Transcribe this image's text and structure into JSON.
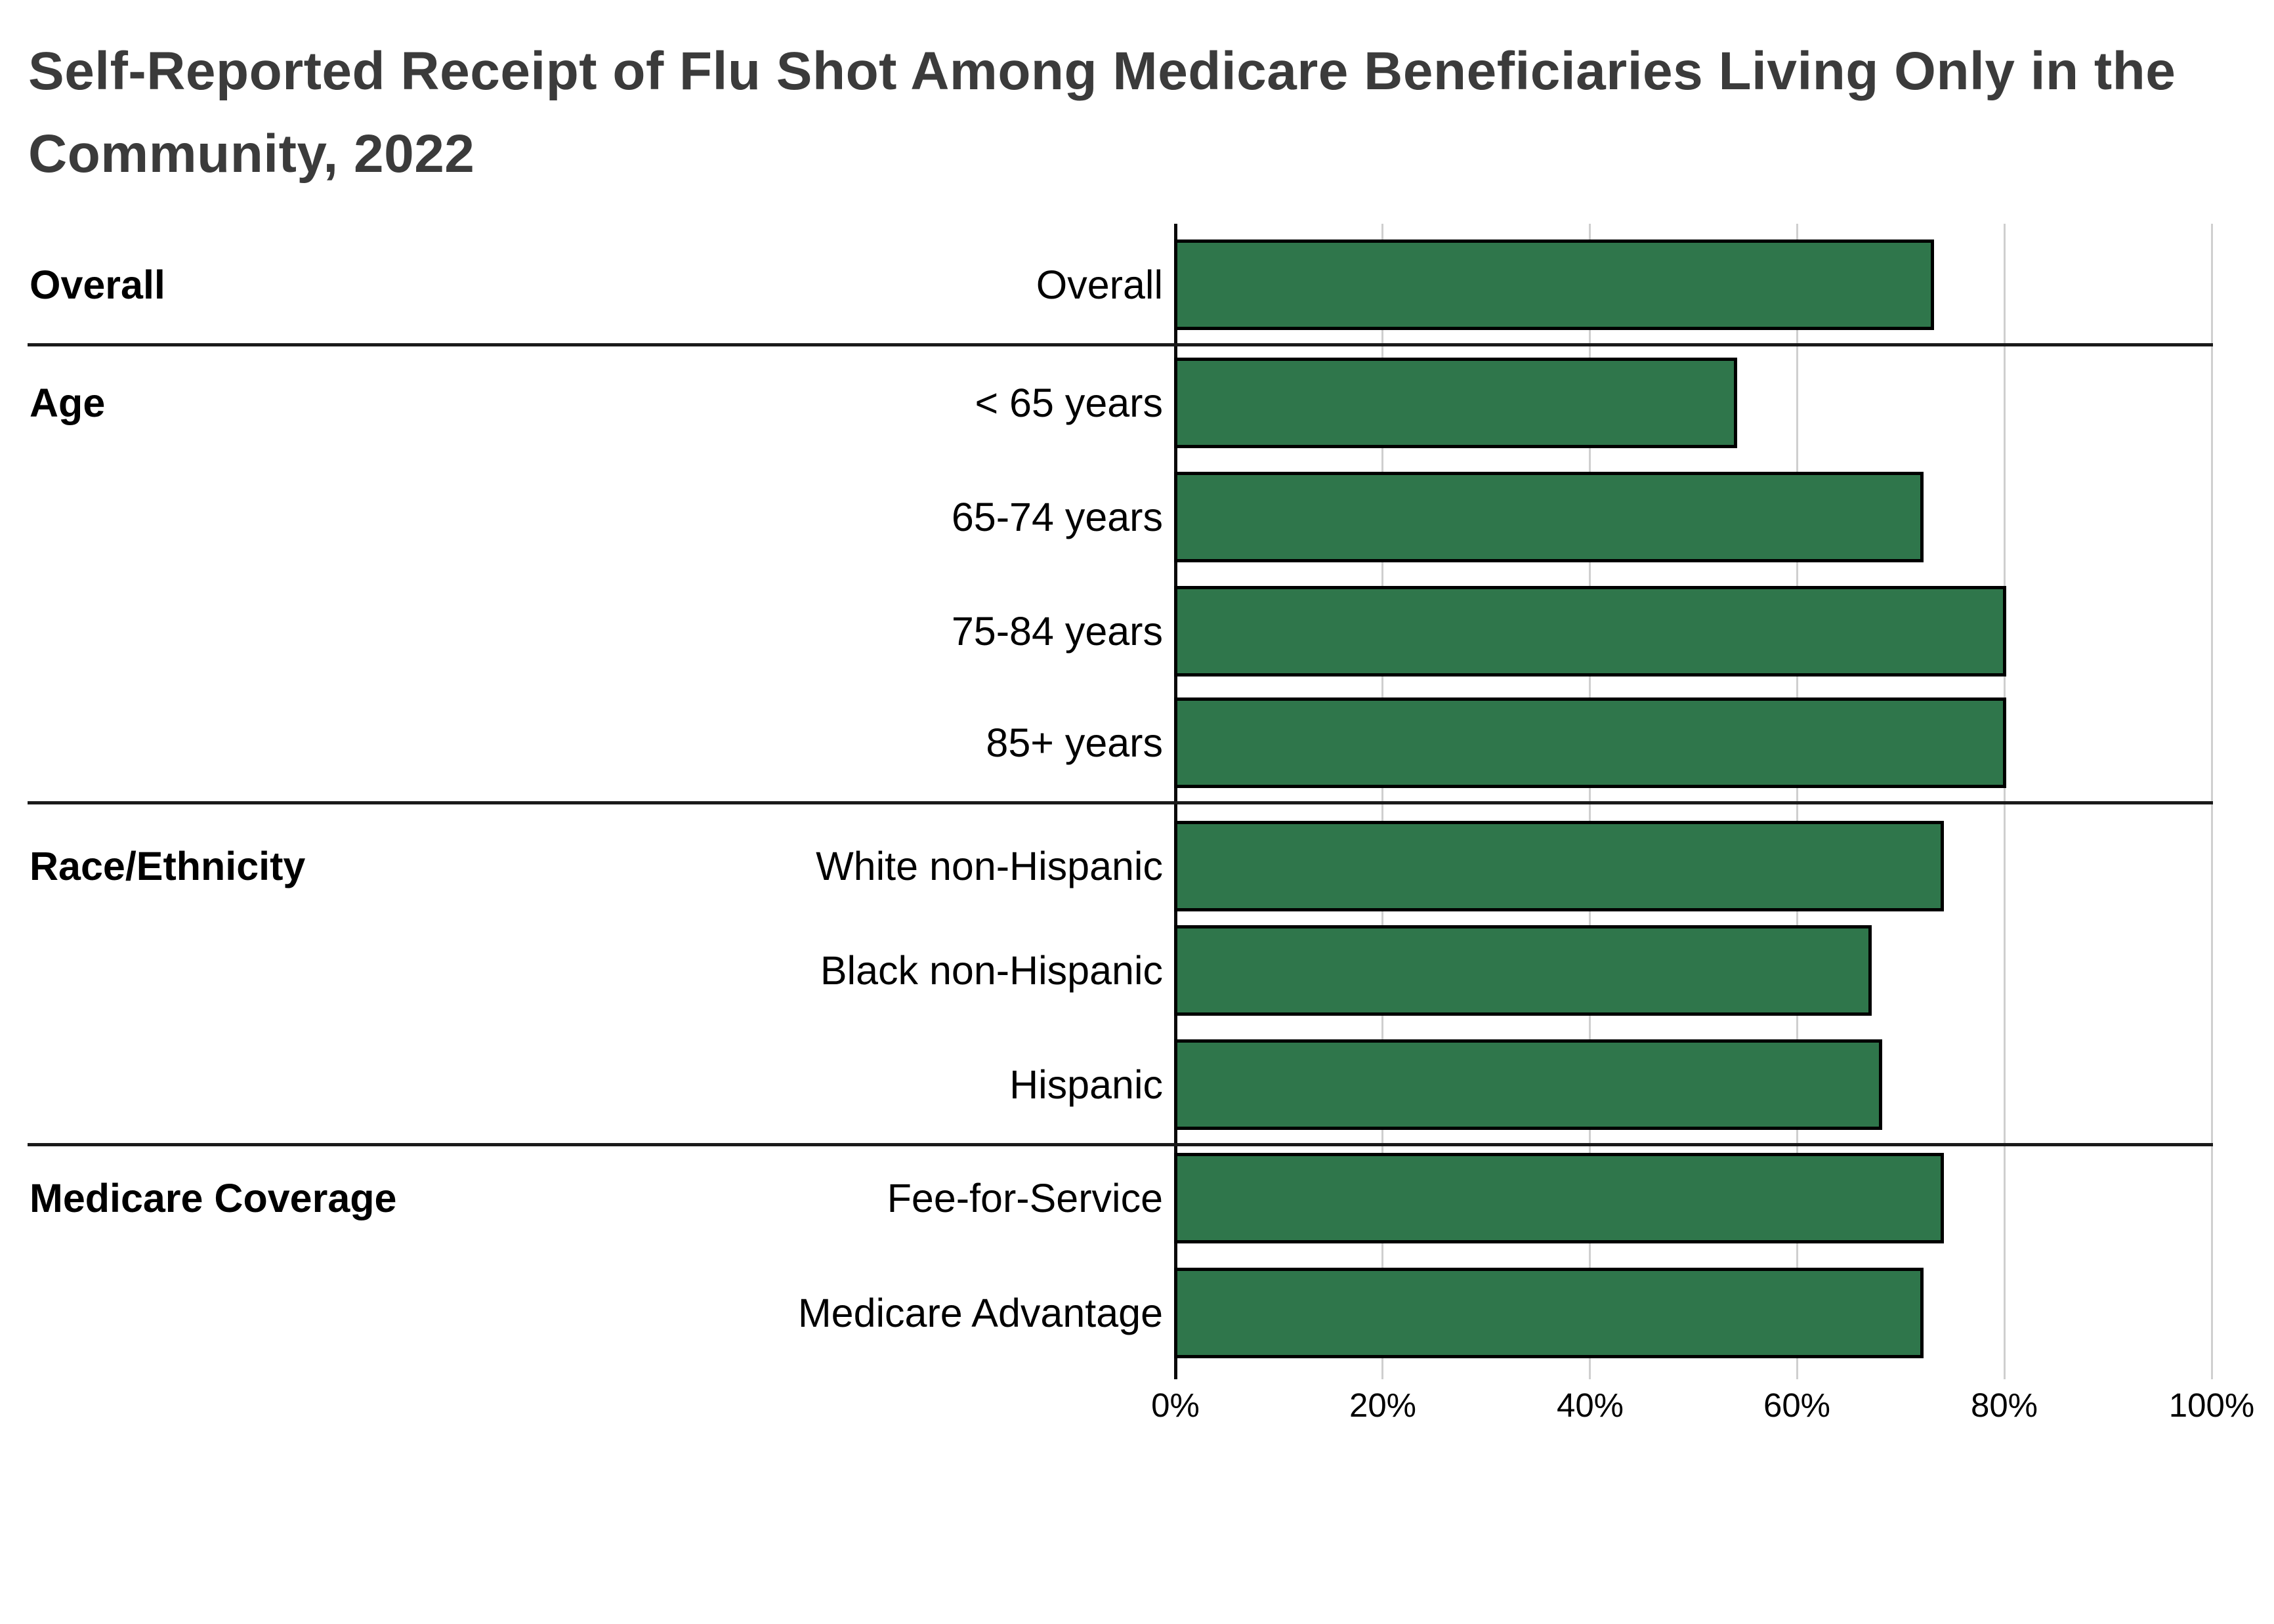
{
  "title": {
    "line1": "Self-Reported Receipt of Flu Shot Among Medicare Beneficiaries Living Only in the",
    "line2": "Community, 2022"
  },
  "chart_data": {
    "type": "bar",
    "orientation": "horizontal",
    "title": "Self-Reported Receipt of Flu Shot Among Medicare Beneficiaries Living Only in the Community, 2022",
    "unit": "%",
    "xlim": [
      0,
      100
    ],
    "x_ticks": [
      {
        "value": 0,
        "label": "0%"
      },
      {
        "value": 20,
        "label": "20%"
      },
      {
        "value": 40,
        "label": "40%"
      },
      {
        "value": 60,
        "label": "60%"
      },
      {
        "value": 80,
        "label": "80%"
      },
      {
        "value": 100,
        "label": "100%"
      }
    ],
    "grid": true,
    "legend": "none",
    "groups": [
      {
        "label": "Overall",
        "rows": [
          {
            "label": "Overall",
            "value": 73
          }
        ]
      },
      {
        "label": "Age",
        "rows": [
          {
            "label": "< 65 years",
            "value": 54
          },
          {
            "label": "65-74 years",
            "value": 72
          },
          {
            "label": "75-84 years",
            "value": 80
          },
          {
            "label": "85+ years",
            "value": 80
          }
        ]
      },
      {
        "label": "Race/Ethnicity",
        "rows": [
          {
            "label": "White non-Hispanic",
            "value": 74
          },
          {
            "label": "Black non-Hispanic",
            "value": 67
          },
          {
            "label": "Hispanic",
            "value": 68
          }
        ]
      },
      {
        "label": "Medicare Coverage",
        "rows": [
          {
            "label": "Fee-for-Service",
            "value": 74
          },
          {
            "label": "Medicare Advantage",
            "value": 72
          }
        ]
      }
    ]
  },
  "colors": {
    "bar_fill": "#2F764B",
    "bar_border": "#000000",
    "gridline": "#cfcfcf",
    "zero_axis": "#0a0a0a",
    "separator": "#1a1a1a",
    "title_text": "#3b3b3b",
    "label_text": "#000000",
    "background": "#ffffff"
  }
}
